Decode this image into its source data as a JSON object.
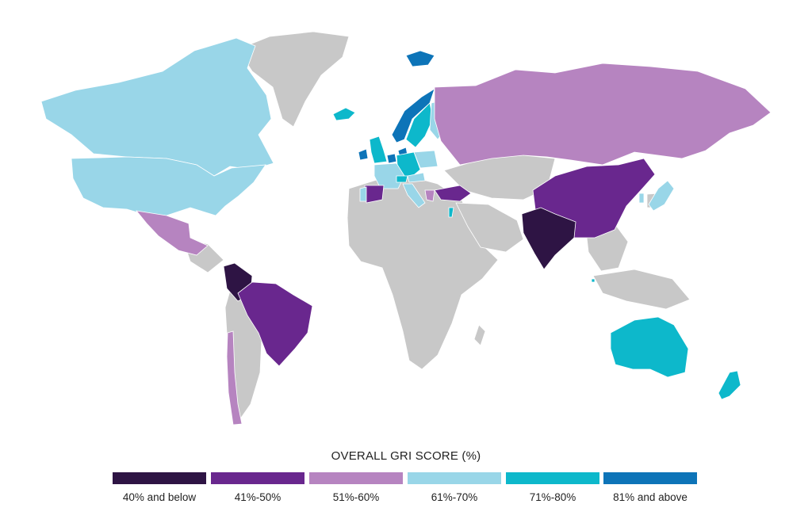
{
  "legend": {
    "title": "OVERALL GRI SCORE (%)",
    "bins": [
      {
        "label": "40% and below",
        "color": "#2e1444"
      },
      {
        "label": "41%-50%",
        "color": "#69278e"
      },
      {
        "label": "51%-60%",
        "color": "#b684c0"
      },
      {
        "label": "61%-70%",
        "color": "#99d6e8"
      },
      {
        "label": "71%-80%",
        "color": "#0db8cb"
      },
      {
        "label": "81% and above",
        "color": "#0d74b8"
      }
    ]
  },
  "no_data_color": "#c8c8c8",
  "countries": [
    {
      "name": "Canada",
      "bin": 3
    },
    {
      "name": "United States",
      "bin": 3
    },
    {
      "name": "Mexico",
      "bin": 2
    },
    {
      "name": "Colombia",
      "bin": 0
    },
    {
      "name": "Brazil",
      "bin": 1
    },
    {
      "name": "Chile",
      "bin": 2
    },
    {
      "name": "Iceland",
      "bin": 4
    },
    {
      "name": "Ireland",
      "bin": 5
    },
    {
      "name": "United Kingdom",
      "bin": 4
    },
    {
      "name": "Norway",
      "bin": 5
    },
    {
      "name": "Sweden",
      "bin": 4
    },
    {
      "name": "Finland",
      "bin": 3
    },
    {
      "name": "Denmark",
      "bin": 5
    },
    {
      "name": "Netherlands",
      "bin": 5
    },
    {
      "name": "Germany",
      "bin": 4
    },
    {
      "name": "France",
      "bin": 3
    },
    {
      "name": "Switzerland",
      "bin": 4
    },
    {
      "name": "Austria",
      "bin": 3
    },
    {
      "name": "Poland",
      "bin": 3
    },
    {
      "name": "Spain",
      "bin": 1
    },
    {
      "name": "Portugal",
      "bin": 3
    },
    {
      "name": "Italy",
      "bin": 3
    },
    {
      "name": "Greece",
      "bin": 2
    },
    {
      "name": "Turkey",
      "bin": 1
    },
    {
      "name": "Israel",
      "bin": 4
    },
    {
      "name": "Russia",
      "bin": 2
    },
    {
      "name": "China",
      "bin": 1
    },
    {
      "name": "India",
      "bin": 0
    },
    {
      "name": "Japan",
      "bin": 3
    },
    {
      "name": "South Korea",
      "bin": 3
    },
    {
      "name": "Singapore",
      "bin": 4
    },
    {
      "name": "Australia",
      "bin": 4
    },
    {
      "name": "New Zealand",
      "bin": 4
    },
    {
      "name": "Svalbard",
      "bin": 5
    }
  ]
}
